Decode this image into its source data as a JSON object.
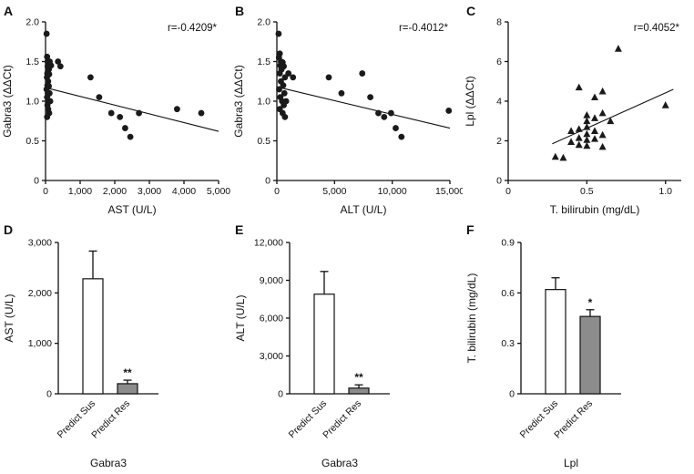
{
  "figure": {
    "background": "#ffffff",
    "marker_color": "#1a1a1a",
    "axis_color": "#111111"
  },
  "chart_data": [
    {
      "panel_label": "A",
      "type": "scatter",
      "marker": "circle",
      "annotation": "r=-0.4209*",
      "xlabel": "AST (U/L)",
      "ylabel": "Gabra3 (ΔΔCt)",
      "xlim": [
        0,
        5000
      ],
      "ylim": [
        0,
        2.0
      ],
      "xticks": [
        0,
        1000,
        2000,
        3000,
        4000,
        5000
      ],
      "xtick_labels": [
        "0",
        "1,000",
        "2,000",
        "3,000",
        "4,000",
        "5,000"
      ],
      "yticks": [
        0,
        0.5,
        1.0,
        1.5,
        2.0
      ],
      "ytick_labels": [
        "0",
        "0.5",
        "1.0",
        "1.5",
        "2.0"
      ],
      "grid": false,
      "trend": [
        [
          0,
          1.17
        ],
        [
          5000,
          0.62
        ]
      ],
      "points": [
        [
          30,
          1.85
        ],
        [
          45,
          1.56
        ],
        [
          60,
          1.5
        ],
        [
          120,
          1.5
        ],
        [
          160,
          1.45
        ],
        [
          60,
          1.44
        ],
        [
          95,
          1.4
        ],
        [
          50,
          1.35
        ],
        [
          105,
          1.34
        ],
        [
          40,
          1.3
        ],
        [
          75,
          1.25
        ],
        [
          55,
          1.2
        ],
        [
          95,
          1.19
        ],
        [
          30,
          1.15
        ],
        [
          65,
          1.1
        ],
        [
          115,
          1.1
        ],
        [
          45,
          1.05
        ],
        [
          85,
          1.0
        ],
        [
          135,
          1.0
        ],
        [
          55,
          0.95
        ],
        [
          75,
          0.9
        ],
        [
          105,
          0.85
        ],
        [
          45,
          0.8
        ],
        [
          360,
          1.5
        ],
        [
          430,
          1.44
        ],
        [
          1300,
          1.3
        ],
        [
          1550,
          1.05
        ],
        [
          1900,
          0.85
        ],
        [
          2150,
          0.8
        ],
        [
          2300,
          0.66
        ],
        [
          2450,
          0.55
        ],
        [
          2700,
          0.85
        ],
        [
          3800,
          0.9
        ],
        [
          4500,
          0.85
        ]
      ]
    },
    {
      "panel_label": "B",
      "type": "scatter",
      "marker": "circle",
      "annotation": "r=-0.4012*",
      "xlabel": "ALT (U/L)",
      "ylabel": "Gabra3 (ΔΔCt)",
      "xlim": [
        0,
        15000
      ],
      "ylim": [
        0,
        2.0
      ],
      "xticks": [
        0,
        5000,
        10000,
        15000
      ],
      "xtick_labels": [
        "0",
        "5,000",
        "10,000",
        "15,000"
      ],
      "yticks": [
        0,
        0.5,
        1.0,
        1.5,
        2.0
      ],
      "ytick_labels": [
        "0",
        "0.5",
        "1.0",
        "1.5",
        "2.0"
      ],
      "grid": false,
      "trend": [
        [
          0,
          1.18
        ],
        [
          15000,
          0.66
        ]
      ],
      "points": [
        [
          150,
          1.85
        ],
        [
          250,
          1.6
        ],
        [
          180,
          1.55
        ],
        [
          350,
          1.5
        ],
        [
          500,
          1.49
        ],
        [
          300,
          1.45
        ],
        [
          600,
          1.44
        ],
        [
          400,
          1.4
        ],
        [
          250,
          1.35
        ],
        [
          700,
          1.3
        ],
        [
          350,
          1.25
        ],
        [
          550,
          1.2
        ],
        [
          200,
          1.15
        ],
        [
          650,
          1.1
        ],
        [
          300,
          1.05
        ],
        [
          800,
          1.0
        ],
        [
          450,
          1.0
        ],
        [
          600,
          0.95
        ],
        [
          250,
          0.9
        ],
        [
          500,
          0.85
        ],
        [
          700,
          0.8
        ],
        [
          1000,
          1.35
        ],
        [
          1400,
          1.3
        ],
        [
          4500,
          1.3
        ],
        [
          5600,
          1.1
        ],
        [
          7400,
          1.35
        ],
        [
          8100,
          1.05
        ],
        [
          8800,
          0.85
        ],
        [
          9300,
          0.8
        ],
        [
          9900,
          0.85
        ],
        [
          10300,
          0.66
        ],
        [
          10800,
          0.55
        ],
        [
          14900,
          0.88
        ]
      ]
    },
    {
      "panel_label": "C",
      "type": "scatter",
      "marker": "triangle",
      "annotation": "r=0.4052*",
      "xlabel": "T. bilirubin (mg/dL)",
      "ylabel": "Lpl (ΔΔCt)",
      "xlim": [
        0,
        1.1
      ],
      "ylim": [
        0,
        8
      ],
      "xticks": [
        0,
        0.5,
        1.0
      ],
      "xtick_labels": [
        "0",
        "0.5",
        "1.0"
      ],
      "yticks": [
        0,
        2,
        4,
        6,
        8
      ],
      "ytick_labels": [
        "0",
        "2",
        "4",
        "6",
        "8"
      ],
      "grid": false,
      "trend": [
        [
          0.28,
          1.85
        ],
        [
          1.05,
          4.6
        ]
      ],
      "points": [
        [
          0.3,
          1.2
        ],
        [
          0.35,
          1.15
        ],
        [
          0.4,
          1.95
        ],
        [
          0.4,
          2.5
        ],
        [
          0.45,
          4.7
        ],
        [
          0.45,
          2.6
        ],
        [
          0.45,
          2.15
        ],
        [
          0.45,
          1.8
        ],
        [
          0.5,
          3.3
        ],
        [
          0.5,
          3.0
        ],
        [
          0.5,
          2.7
        ],
        [
          0.5,
          2.35
        ],
        [
          0.5,
          2.05
        ],
        [
          0.5,
          1.75
        ],
        [
          0.55,
          4.2
        ],
        [
          0.55,
          3.15
        ],
        [
          0.55,
          2.5
        ],
        [
          0.55,
          2.1
        ],
        [
          0.6,
          4.5
        ],
        [
          0.6,
          3.4
        ],
        [
          0.6,
          2.3
        ],
        [
          0.6,
          1.7
        ],
        [
          0.65,
          3.0
        ],
        [
          0.7,
          6.65
        ],
        [
          1.0,
          3.8
        ]
      ]
    },
    {
      "panel_label": "D",
      "type": "bar",
      "categories": [
        "Predict Sus",
        "Predict Res"
      ],
      "values": [
        2280,
        200
      ],
      "errors": [
        550,
        70
      ],
      "significance": [
        "",
        "**"
      ],
      "bar_colors": [
        "#ffffff",
        "#8c8c8c"
      ],
      "xlabel": "Gabra3",
      "ylabel": "AST (U/L)",
      "ylim": [
        0,
        3000
      ],
      "yticks": [
        0,
        1000,
        2000,
        3000
      ],
      "ytick_labels": [
        "0",
        "1,000",
        "2,000",
        "3,000"
      ],
      "grid": false
    },
    {
      "panel_label": "E",
      "type": "bar",
      "categories": [
        "Predict Sus",
        "Predict Res"
      ],
      "values": [
        7900,
        450
      ],
      "errors": [
        1800,
        260
      ],
      "significance": [
        "",
        "**"
      ],
      "bar_colors": [
        "#ffffff",
        "#8c8c8c"
      ],
      "xlabel": "Gabra3",
      "ylabel": "ALT (U/L)",
      "ylim": [
        0,
        12000
      ],
      "yticks": [
        0,
        3000,
        6000,
        9000,
        12000
      ],
      "ytick_labels": [
        "0",
        "3,000",
        "6,000",
        "9,000",
        "12,000"
      ],
      "grid": false
    },
    {
      "panel_label": "F",
      "type": "bar",
      "categories": [
        "Predict Sus",
        "Predict Res"
      ],
      "values": [
        0.62,
        0.46
      ],
      "errors": [
        0.07,
        0.04
      ],
      "significance": [
        "",
        "*"
      ],
      "bar_colors": [
        "#ffffff",
        "#8c8c8c"
      ],
      "xlabel": "Lpl",
      "ylabel": "T. bilirubin (mg/dL)",
      "ylim": [
        0,
        0.9
      ],
      "yticks": [
        0,
        0.3,
        0.6,
        0.9
      ],
      "ytick_labels": [
        "0",
        "0.3",
        "0.6",
        "0.9"
      ],
      "grid": false
    }
  ]
}
